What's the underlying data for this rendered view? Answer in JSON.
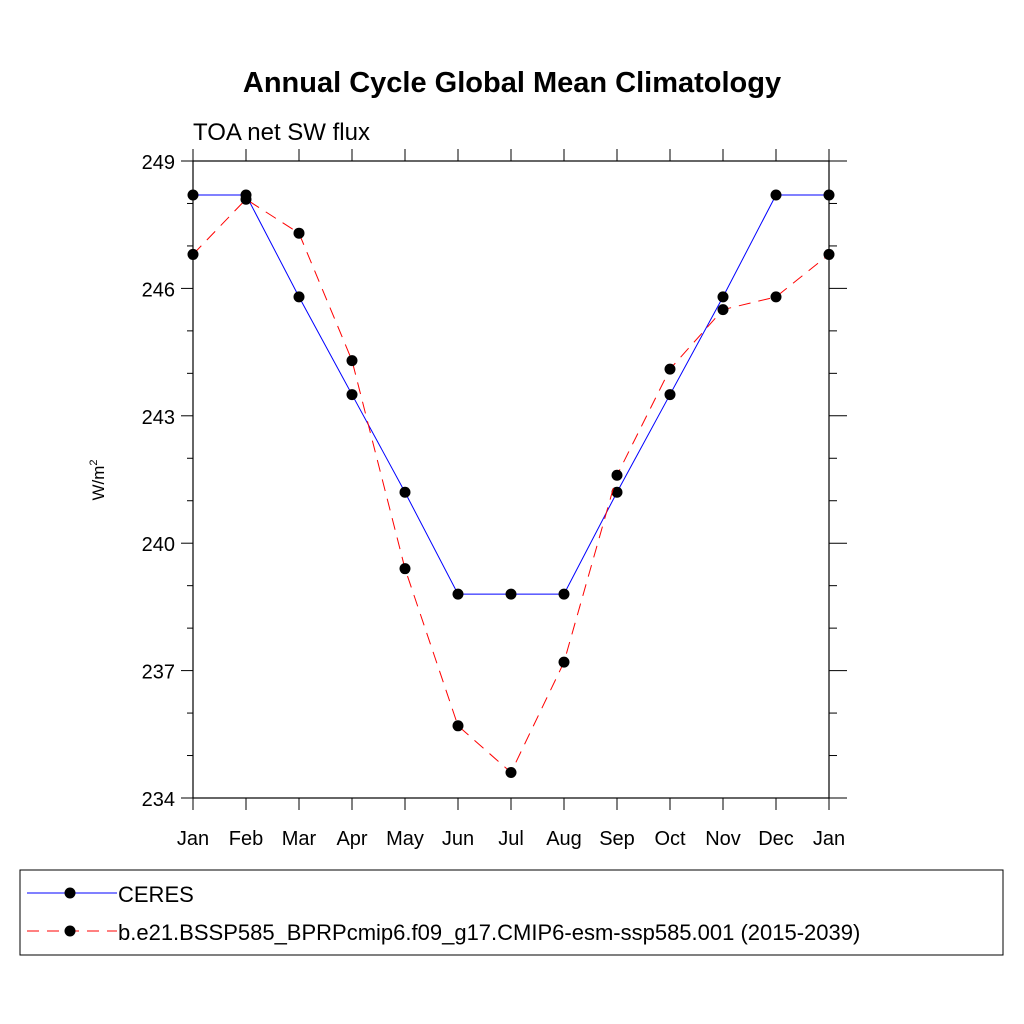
{
  "chart_data": {
    "type": "line",
    "title": "Annual Cycle Global Mean Climatology",
    "subtitle": "TOA net SW flux",
    "ylabel": "W/m",
    "ylabel_sup": "2",
    "xlabel": "",
    "categories": [
      "Jan",
      "Feb",
      "Mar",
      "Apr",
      "May",
      "Jun",
      "Jul",
      "Aug",
      "Sep",
      "Oct",
      "Nov",
      "Dec",
      "Jan"
    ],
    "ylim": [
      234,
      249
    ],
    "yticks": [
      234,
      237,
      240,
      243,
      246,
      249
    ],
    "grid": false,
    "legend_position": "bottom",
    "series": [
      {
        "name": "CERES",
        "color": "#0000ff",
        "dash": "solid",
        "marker": "filled-circle",
        "values": [
          248.2,
          248.2,
          245.8,
          243.5,
          241.2,
          238.8,
          238.8,
          238.8,
          241.2,
          243.5,
          245.8,
          248.2,
          248.2
        ]
      },
      {
        "name": "b.e21.BSSP585_BPRPcmip6.f09_g17.CMIP6-esm-ssp585.001 (2015-2039)",
        "color": "#ff0000",
        "dash": "dashed",
        "marker": "filled-circle",
        "values": [
          246.8,
          248.1,
          247.3,
          244.3,
          239.4,
          235.7,
          234.6,
          237.2,
          241.6,
          244.1,
          245.5,
          245.8,
          246.8
        ]
      }
    ]
  }
}
